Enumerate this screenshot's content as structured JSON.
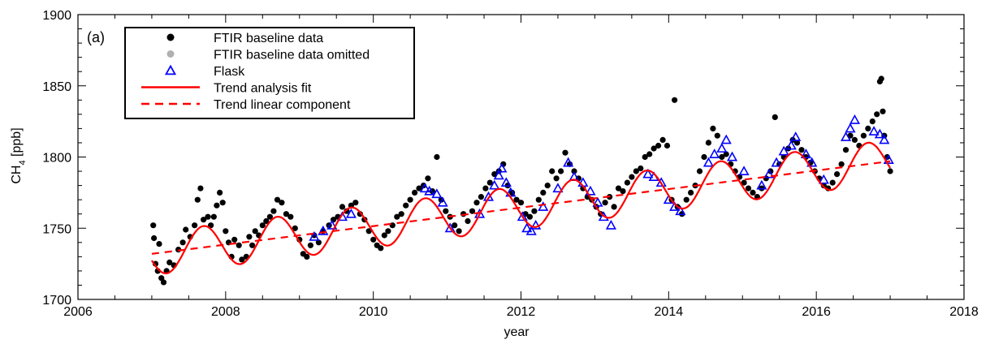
{
  "chart_data": {
    "type": "scatter",
    "panel_label": "(a)",
    "xlabel": "year",
    "ylabel_main": "CH",
    "ylabel_sub": "4",
    "ylabel_unit": " [ppb]",
    "xlim": [
      2006,
      2018
    ],
    "ylim": [
      1700,
      1900
    ],
    "x_ticks": [
      2006,
      2008,
      2010,
      2012,
      2014,
      2016,
      2018
    ],
    "y_ticks": [
      1700,
      1750,
      1800,
      1850,
      1900
    ],
    "x_tick_labels": [
      "2006",
      "2008",
      "2010",
      "2012",
      "2014",
      "2016",
      "2018"
    ],
    "y_tick_labels": [
      "1700",
      "1750",
      "1800",
      "1850",
      "1900"
    ],
    "legend": {
      "position": "top-left",
      "entries": [
        {
          "label": "FTIR baseline data",
          "marker": "filled-circle",
          "color": "#000000"
        },
        {
          "label": "FTIR baseline data omitted",
          "marker": "filled-circle",
          "color": "#b0b0b0"
        },
        {
          "label": "Flask",
          "marker": "open-triangle",
          "color": "#0000ff"
        },
        {
          "label": "Trend analysis fit",
          "marker": "solid-line",
          "color": "#ff0000"
        },
        {
          "label": "Trend linear component",
          "marker": "dashed-line",
          "color": "#ff0000"
        }
      ]
    },
    "trend_model": {
      "linear_start": [
        2007.0,
        1732
      ],
      "linear_end": [
        2017.0,
        1797
      ],
      "seasonal_amplitude": 15,
      "seasonal_peak_phase_year": 0.7
    },
    "series": [
      {
        "name": "FTIR baseline data",
        "color": "#000000",
        "points": [
          [
            2007.02,
            1752
          ],
          [
            2007.03,
            1743
          ],
          [
            2007.05,
            1725
          ],
          [
            2007.08,
            1720
          ],
          [
            2007.1,
            1739
          ],
          [
            2007.13,
            1715
          ],
          [
            2007.16,
            1712
          ],
          [
            2007.2,
            1720
          ],
          [
            2007.24,
            1726
          ],
          [
            2007.3,
            1724
          ],
          [
            2007.36,
            1735
          ],
          [
            2007.42,
            1740
          ],
          [
            2007.46,
            1749
          ],
          [
            2007.52,
            1744
          ],
          [
            2007.58,
            1752
          ],
          [
            2007.62,
            1770
          ],
          [
            2007.66,
            1778
          ],
          [
            2007.7,
            1756
          ],
          [
            2007.76,
            1758
          ],
          [
            2007.8,
            1752
          ],
          [
            2007.84,
            1758
          ],
          [
            2007.88,
            1766
          ],
          [
            2007.92,
            1775
          ],
          [
            2007.96,
            1768
          ],
          [
            2008.0,
            1748
          ],
          [
            2008.04,
            1740
          ],
          [
            2008.08,
            1730
          ],
          [
            2008.12,
            1742
          ],
          [
            2008.18,
            1738
          ],
          [
            2008.22,
            1728
          ],
          [
            2008.28,
            1730
          ],
          [
            2008.32,
            1744
          ],
          [
            2008.36,
            1738
          ],
          [
            2008.4,
            1748
          ],
          [
            2008.45,
            1745
          ],
          [
            2008.5,
            1752
          ],
          [
            2008.55,
            1755
          ],
          [
            2008.6,
            1758
          ],
          [
            2008.65,
            1762
          ],
          [
            2008.7,
            1770
          ],
          [
            2008.76,
            1768
          ],
          [
            2008.82,
            1760
          ],
          [
            2008.88,
            1758
          ],
          [
            2008.94,
            1750
          ],
          [
            2009.0,
            1742
          ],
          [
            2009.05,
            1732
          ],
          [
            2009.1,
            1730
          ],
          [
            2009.15,
            1738
          ],
          [
            2009.2,
            1745
          ],
          [
            2009.26,
            1740
          ],
          [
            2009.32,
            1748
          ],
          [
            2009.4,
            1752
          ],
          [
            2009.46,
            1756
          ],
          [
            2009.52,
            1758
          ],
          [
            2009.58,
            1765
          ],
          [
            2009.64,
            1762
          ],
          [
            2009.7,
            1766
          ],
          [
            2009.76,
            1768
          ],
          [
            2009.82,
            1760
          ],
          [
            2009.88,
            1756
          ],
          [
            2009.94,
            1748
          ],
          [
            2010.0,
            1742
          ],
          [
            2010.05,
            1738
          ],
          [
            2010.1,
            1736
          ],
          [
            2010.15,
            1745
          ],
          [
            2010.2,
            1748
          ],
          [
            2010.26,
            1752
          ],
          [
            2010.32,
            1758
          ],
          [
            2010.38,
            1760
          ],
          [
            2010.44,
            1766
          ],
          [
            2010.5,
            1770
          ],
          [
            2010.56,
            1775
          ],
          [
            2010.62,
            1778
          ],
          [
            2010.68,
            1780
          ],
          [
            2010.74,
            1785
          ],
          [
            2010.8,
            1776
          ],
          [
            2010.86,
            1800
          ],
          [
            2010.92,
            1770
          ],
          [
            2010.98,
            1762
          ],
          [
            2011.04,
            1758
          ],
          [
            2011.1,
            1752
          ],
          [
            2011.16,
            1748
          ],
          [
            2011.22,
            1760
          ],
          [
            2011.28,
            1755
          ],
          [
            2011.34,
            1762
          ],
          [
            2011.4,
            1768
          ],
          [
            2011.46,
            1772
          ],
          [
            2011.52,
            1778
          ],
          [
            2011.58,
            1782
          ],
          [
            2011.64,
            1788
          ],
          [
            2011.7,
            1790
          ],
          [
            2011.76,
            1795
          ],
          [
            2011.82,
            1780
          ],
          [
            2011.88,
            1775
          ],
          [
            2011.94,
            1770
          ],
          [
            2012.0,
            1768
          ],
          [
            2012.06,
            1760
          ],
          [
            2012.12,
            1758
          ],
          [
            2012.18,
            1762
          ],
          [
            2012.24,
            1770
          ],
          [
            2012.3,
            1775
          ],
          [
            2012.36,
            1780
          ],
          [
            2012.42,
            1790
          ],
          [
            2012.48,
            1785
          ],
          [
            2012.54,
            1790
          ],
          [
            2012.6,
            1803
          ],
          [
            2012.66,
            1795
          ],
          [
            2012.72,
            1790
          ],
          [
            2012.78,
            1785
          ],
          [
            2012.84,
            1778
          ],
          [
            2012.9,
            1772
          ],
          [
            2012.96,
            1770
          ],
          [
            2013.02,
            1765
          ],
          [
            2013.08,
            1760
          ],
          [
            2013.14,
            1768
          ],
          [
            2013.2,
            1772
          ],
          [
            2013.26,
            1765
          ],
          [
            2013.32,
            1778
          ],
          [
            2013.38,
            1776
          ],
          [
            2013.44,
            1782
          ],
          [
            2013.5,
            1786
          ],
          [
            2013.56,
            1790
          ],
          [
            2013.62,
            1792
          ],
          [
            2013.68,
            1800
          ],
          [
            2013.74,
            1802
          ],
          [
            2013.8,
            1806
          ],
          [
            2013.86,
            1808
          ],
          [
            2013.92,
            1812
          ],
          [
            2013.98,
            1808
          ],
          [
            2014.04,
            1770
          ],
          [
            2014.08,
            1840
          ],
          [
            2014.12,
            1765
          ],
          [
            2014.18,
            1760
          ],
          [
            2014.24,
            1770
          ],
          [
            2014.3,
            1775
          ],
          [
            2014.36,
            1780
          ],
          [
            2014.42,
            1790
          ],
          [
            2014.48,
            1800
          ],
          [
            2014.54,
            1810
          ],
          [
            2014.6,
            1820
          ],
          [
            2014.66,
            1815
          ],
          [
            2014.72,
            1800
          ],
          [
            2014.78,
            1802
          ],
          [
            2014.84,
            1795
          ],
          [
            2014.9,
            1790
          ],
          [
            2014.96,
            1786
          ],
          [
            2015.02,
            1782
          ],
          [
            2015.08,
            1778
          ],
          [
            2015.14,
            1775
          ],
          [
            2015.2,
            1772
          ],
          [
            2015.26,
            1778
          ],
          [
            2015.32,
            1785
          ],
          [
            2015.38,
            1790
          ],
          [
            2015.44,
            1828
          ],
          [
            2015.5,
            1795
          ],
          [
            2015.56,
            1800
          ],
          [
            2015.62,
            1806
          ],
          [
            2015.68,
            1812
          ],
          [
            2015.74,
            1810
          ],
          [
            2015.8,
            1805
          ],
          [
            2015.86,
            1800
          ],
          [
            2015.92,
            1796
          ],
          [
            2015.98,
            1790
          ],
          [
            2016.04,
            1785
          ],
          [
            2016.1,
            1780
          ],
          [
            2016.16,
            1778
          ],
          [
            2016.22,
            1782
          ],
          [
            2016.28,
            1788
          ],
          [
            2016.34,
            1795
          ],
          [
            2016.4,
            1805
          ],
          [
            2016.46,
            1815
          ],
          [
            2016.52,
            1812
          ],
          [
            2016.58,
            1808
          ],
          [
            2016.64,
            1815
          ],
          [
            2016.7,
            1820
          ],
          [
            2016.76,
            1825
          ],
          [
            2016.82,
            1830
          ],
          [
            2016.86,
            1853
          ],
          [
            2016.88,
            1855
          ],
          [
            2016.9,
            1832
          ],
          [
            2016.92,
            1815
          ],
          [
            2016.96,
            1800
          ],
          [
            2017.0,
            1790
          ]
        ]
      },
      {
        "name": "Flask",
        "color": "#0000ff",
        "points": [
          [
            2009.2,
            1744
          ],
          [
            2009.32,
            1748
          ],
          [
            2009.44,
            1752
          ],
          [
            2009.58,
            1758
          ],
          [
            2009.7,
            1760
          ],
          [
            2010.7,
            1778
          ],
          [
            2010.76,
            1776
          ],
          [
            2010.86,
            1774
          ],
          [
            2010.94,
            1768
          ],
          [
            2011.04,
            1750
          ],
          [
            2011.44,
            1760
          ],
          [
            2011.56,
            1772
          ],
          [
            2011.64,
            1780
          ],
          [
            2011.7,
            1787
          ],
          [
            2011.74,
            1792
          ],
          [
            2011.8,
            1782
          ],
          [
            2011.86,
            1775
          ],
          [
            2012.02,
            1758
          ],
          [
            2012.08,
            1750
          ],
          [
            2012.14,
            1748
          ],
          [
            2012.2,
            1752
          ],
          [
            2012.3,
            1765
          ],
          [
            2012.5,
            1778
          ],
          [
            2012.64,
            1796
          ],
          [
            2012.72,
            1786
          ],
          [
            2012.84,
            1782
          ],
          [
            2012.94,
            1776
          ],
          [
            2013.04,
            1768
          ],
          [
            2013.12,
            1758
          ],
          [
            2013.22,
            1752
          ],
          [
            2013.72,
            1788
          ],
          [
            2013.8,
            1786
          ],
          [
            2013.9,
            1782
          ],
          [
            2014.0,
            1770
          ],
          [
            2014.08,
            1765
          ],
          [
            2014.16,
            1762
          ],
          [
            2014.54,
            1796
          ],
          [
            2014.62,
            1802
          ],
          [
            2014.72,
            1806
          ],
          [
            2014.78,
            1812
          ],
          [
            2014.86,
            1800
          ],
          [
            2015.02,
            1790
          ],
          [
            2015.26,
            1780
          ],
          [
            2015.36,
            1788
          ],
          [
            2015.46,
            1796
          ],
          [
            2015.56,
            1804
          ],
          [
            2015.66,
            1808
          ],
          [
            2015.72,
            1814
          ],
          [
            2015.86,
            1802
          ],
          [
            2015.94,
            1796
          ],
          [
            2016.1,
            1784
          ],
          [
            2016.4,
            1814
          ],
          [
            2016.46,
            1820
          ],
          [
            2016.52,
            1826
          ],
          [
            2016.78,
            1818
          ],
          [
            2016.86,
            1816
          ],
          [
            2016.92,
            1812
          ],
          [
            2016.98,
            1798
          ]
        ]
      }
    ]
  }
}
